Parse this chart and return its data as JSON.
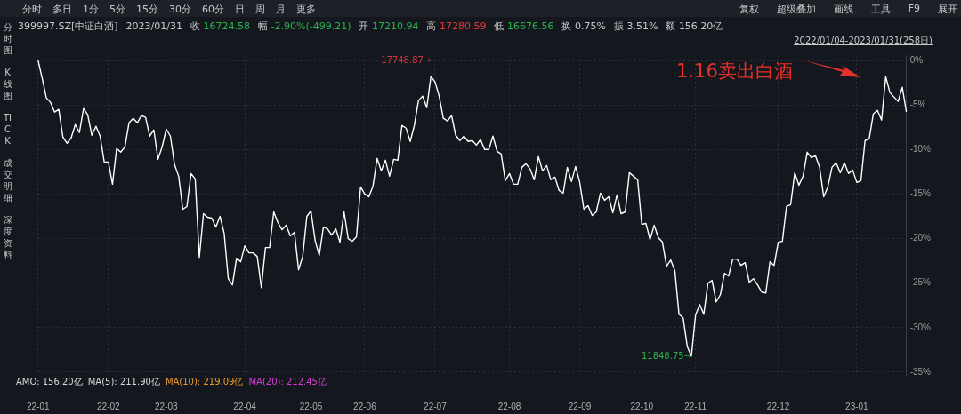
{
  "chart_data": {
    "type": "line",
    "title": "399997.SZ[中证白酒]",
    "categories": [
      "22-01",
      null,
      null,
      null,
      null,
      null,
      null,
      null,
      null,
      null,
      null,
      null,
      null,
      null,
      null,
      null,
      null,
      "22-02",
      null,
      null,
      null,
      null,
      null,
      null,
      null,
      null,
      null,
      null,
      null,
      null,
      null,
      "22-03",
      null,
      null,
      null,
      null,
      null,
      null,
      null,
      null,
      null,
      null,
      null,
      null,
      null,
      null,
      null,
      null,
      null,
      null,
      "22-04",
      null,
      null,
      null,
      null,
      null,
      null,
      null,
      null,
      null,
      null,
      null,
      null,
      null,
      null,
      null,
      "22-05",
      null,
      null,
      null,
      null,
      null,
      null,
      null,
      null,
      null,
      null,
      null,
      null,
      "22-06",
      null,
      null,
      null,
      null,
      null,
      null,
      null,
      null,
      null,
      null,
      null,
      null,
      null,
      null,
      null,
      null,
      "22-07",
      null,
      null,
      null,
      null,
      null,
      null,
      null,
      null,
      null,
      null,
      null,
      null,
      null,
      null,
      null,
      null,
      null,
      "22-08",
      null,
      null,
      null,
      null,
      null,
      null,
      null,
      null,
      null,
      null,
      null,
      null,
      null,
      null,
      null,
      null,
      "22-09",
      null,
      null,
      null,
      null,
      null,
      null,
      null,
      null,
      null,
      null,
      null,
      null,
      null,
      null,
      "22-10",
      null,
      null,
      null,
      null,
      null,
      null,
      null,
      null,
      null,
      null,
      null,
      null,
      "22-11",
      null,
      null,
      null,
      null,
      null,
      null,
      null,
      null,
      null,
      null,
      null,
      null,
      null,
      null,
      null,
      null,
      null,
      null,
      null,
      "22-12",
      null,
      null,
      null,
      null,
      null,
      null,
      null,
      null,
      null,
      null,
      null,
      null,
      null,
      null,
      null,
      null,
      null,
      null,
      "23-01",
      null,
      null,
      null,
      null,
      null,
      null,
      null,
      null,
      null,
      null,
      null,
      null
    ],
    "series": [
      {
        "color": "#ffffff",
        "values": [
          0,
          -2,
          -4.2,
          -4.7,
          -5.8,
          -5.5,
          -8.6,
          -9.3,
          -8.7,
          -7.2,
          -8.1,
          -5.4,
          -6.1,
          -8.4,
          -7.4,
          -8.5,
          -11.4,
          -11.4,
          -13.9,
          -9.9,
          -10.3,
          -9.7,
          -7.0,
          -6.5,
          -7.0,
          -6.2,
          -6.4,
          -8.5,
          -7.8,
          -11.1,
          -9.7,
          -7.7,
          -8.5,
          -11.7,
          -13.0,
          -16.7,
          -16.4,
          -12.7,
          -13.3,
          -22.1,
          -17.2,
          -17.6,
          -17.7,
          -18.7,
          -17.5,
          -19.4,
          -24.5,
          -25.2,
          -22.2,
          -22.6,
          -20.8,
          -21.6,
          -21.6,
          -22.0,
          -25.5,
          -21.0,
          -21.0,
          -17.0,
          -18.2,
          -19.0,
          -18.5,
          -19.7,
          -19.3,
          -23.5,
          -22.0,
          -17.5,
          -16.9,
          -20.2,
          -21.9,
          -18.7,
          -18.9,
          -19.6,
          -18.9,
          -20.4,
          -17.0,
          -20.0,
          -20.3,
          -19.8,
          -14.2,
          -15.0,
          -15.3,
          -14.1,
          -11.0,
          -12.4,
          -11.2,
          -13.0,
          -11.1,
          -11.2,
          -7.3,
          -7.6,
          -9.1,
          -7.3,
          -4.5,
          -4.0,
          -5.3,
          -1.8,
          -2.4,
          -4.0,
          -6.5,
          -6.8,
          -6.2,
          -8.4,
          -9.0,
          -8.5,
          -9.1,
          -9.0,
          -9.5,
          -8.9,
          -10.0,
          -10.0,
          -8.5,
          -10.2,
          -10.5,
          -13.5,
          -12.7,
          -13.9,
          -13.9,
          -12.0,
          -11.6,
          -12.2,
          -13.4,
          -10.8,
          -12.4,
          -11.8,
          -13.4,
          -13.1,
          -14.6,
          -14.9,
          -12.0,
          -13.6,
          -11.9,
          -13.7,
          -16.7,
          -16.3,
          -17.4,
          -17.0,
          -14.9,
          -15.7,
          -15.3,
          -17.1,
          -15.1,
          -17.2,
          -17.0,
          -12.6,
          -13.0,
          -13.4,
          -18.4,
          -18.3,
          -20.1,
          -18.5,
          -19.9,
          -20.4,
          -23.1,
          -22.4,
          -23.6,
          -28.5,
          -28.9,
          -32.1,
          -33.2,
          -28.6,
          -27.4,
          -28.5,
          -25.0,
          -24.7,
          -27.1,
          -26.3,
          -23.9,
          -24.2,
          -22.3,
          -22.3,
          -23.0,
          -22.7,
          -24.9,
          -24.5,
          -25.2,
          -26.0,
          -26.1,
          -22.6,
          -23.0,
          -20.4,
          -20.3,
          -16.4,
          -16.2,
          -12.6,
          -14.0,
          -13.0,
          -10.3,
          -10.9,
          -10.7,
          -12.0,
          -15.3,
          -14.2,
          -12.0,
          -11.5,
          -12.6,
          -11.5,
          -12.7,
          -12.3,
          -13.7,
          -13.5,
          -9.0,
          -8.8,
          -6.0,
          -5.6,
          -6.7,
          -1.8,
          -3.6,
          -4.1,
          -4.6,
          -3.0,
          -5.8
        ]
      }
    ],
    "ylim": [
      -35.3,
      0.6
    ],
    "yticks": [
      {
        "value": 0,
        "label": "0%"
      },
      {
        "value": -5,
        "label": "-5%"
      },
      {
        "value": -10,
        "label": "-10%"
      },
      {
        "value": -15,
        "label": "-15%"
      },
      {
        "value": -20,
        "label": "-20%"
      },
      {
        "value": -25,
        "label": "-25%"
      },
      {
        "value": -30,
        "label": "-30%"
      },
      {
        "value": -35,
        "label": "-35%"
      }
    ],
    "grid": true,
    "legend": false,
    "marker": "none",
    "line_style": "solid",
    "annotations": [
      "17748.87→",
      "11848.75→",
      "1.16卖出白酒",
      "分时",
      "多日",
      "1分",
      "5分",
      "15分",
      "30分",
      "60分",
      "日",
      "周",
      "月",
      "更多",
      "复权",
      "超级叠加",
      "画线",
      "工具",
      "F9",
      "展开",
      "分时图",
      "K线图",
      "TICK",
      "成交明细",
      "深度资料",
      "2023/01/31",
      "收 16724.58",
      "幅 -2.90%(-499.21)",
      "开 17210.94",
      "高 17280.59",
      "低 16676.56",
      "换 0.75%",
      "振 3.51%",
      "额 156.20亿",
      "2022/01/04-2023/01/31(258日)",
      "AMO: 156.20亿",
      "MA(5): 211.90亿",
      "MA(10): 219.09亿",
      "MA(20): 212.45亿"
    ]
  }
}
